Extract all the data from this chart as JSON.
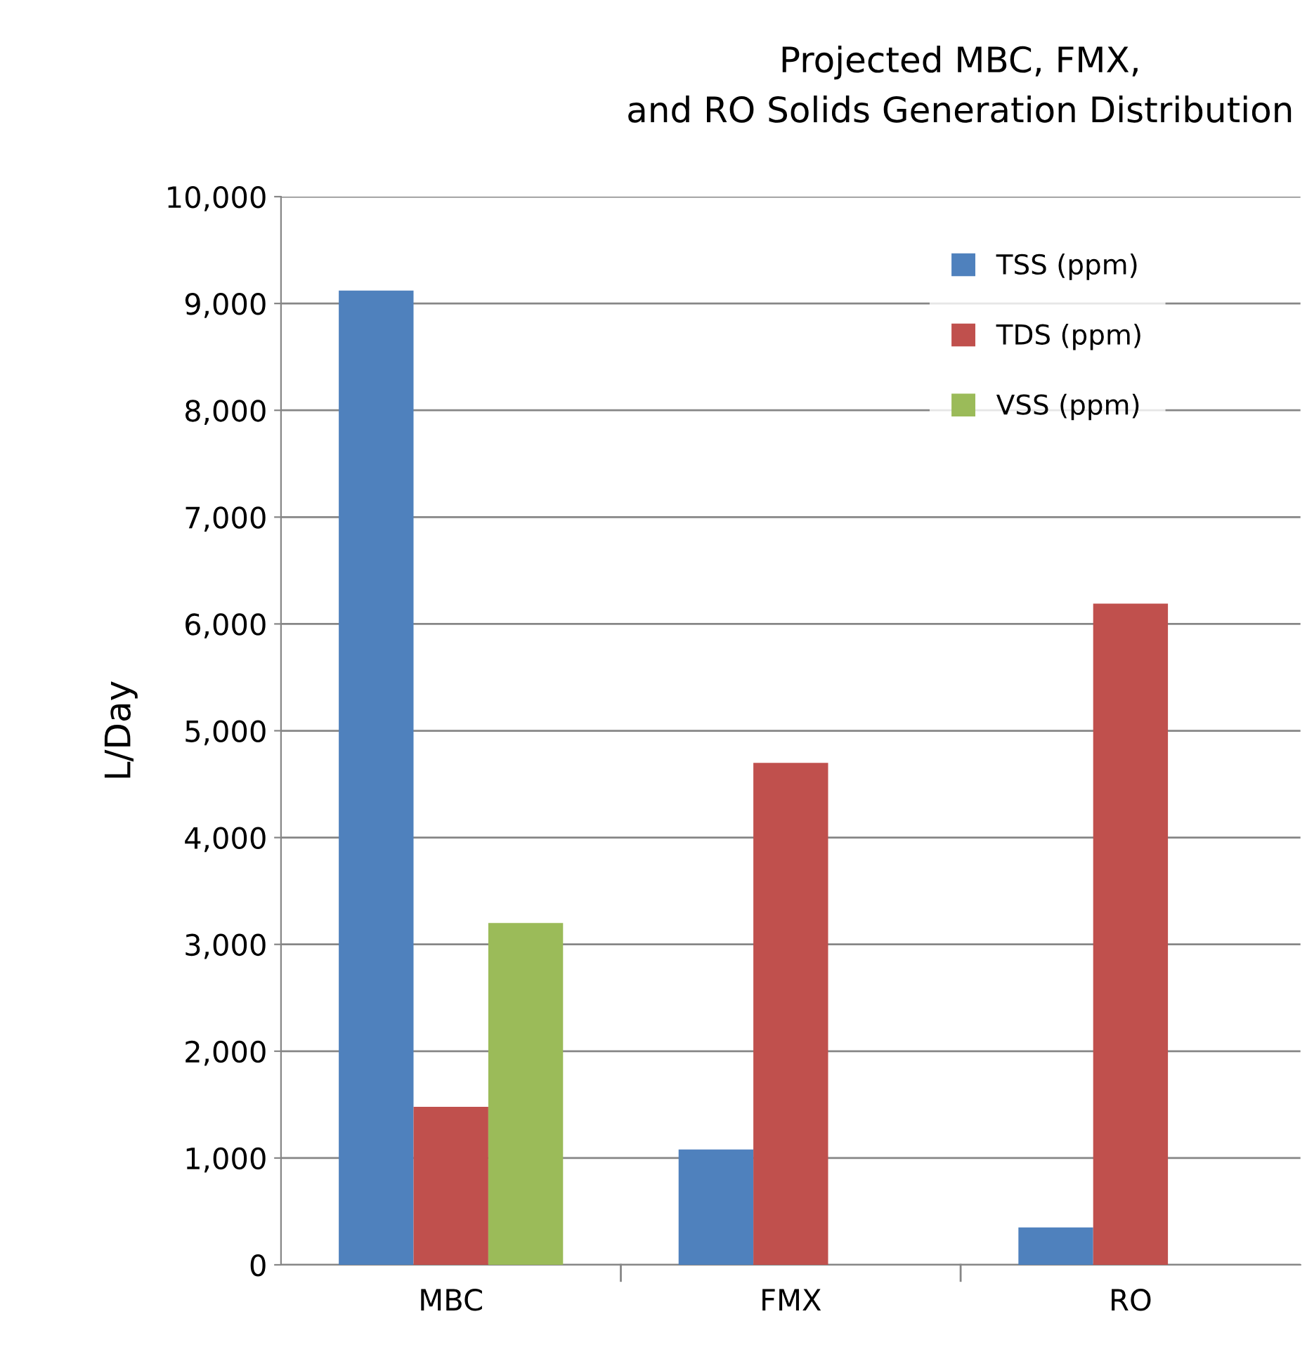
{
  "chart_data": {
    "type": "bar",
    "title": "Projected MBC, FMX,\nand RO Solids Generation Distribution",
    "ylabel": "L/Day",
    "categories": [
      "MBC",
      "FMX",
      "RO"
    ],
    "series": [
      {
        "name": "TSS (ppm)",
        "color": "#4f81bd",
        "values": [
          9120,
          1080,
          350
        ]
      },
      {
        "name": "TDS (ppm)",
        "color": "#c0504d",
        "values": [
          1480,
          4700,
          6190
        ]
      },
      {
        "name": "VSS (ppm)",
        "color": "#9bbb59",
        "values": [
          3200,
          null,
          null
        ]
      }
    ],
    "ylim": [
      0,
      10000
    ],
    "yticks": [
      {
        "value": 0,
        "label": "0"
      },
      {
        "value": 1000,
        "label": "1,000"
      },
      {
        "value": 2000,
        "label": "2,000"
      },
      {
        "value": 3000,
        "label": "3,000"
      },
      {
        "value": 4000,
        "label": "4,000"
      },
      {
        "value": 5000,
        "label": "5,000"
      },
      {
        "value": 6000,
        "label": "6,000"
      },
      {
        "value": 7000,
        "label": "7,000"
      },
      {
        "value": 8000,
        "label": "8,000"
      },
      {
        "value": 9000,
        "label": "9,000"
      },
      {
        "value": 10000,
        "label": "10,000"
      }
    ],
    "grid": "y",
    "legend": "top right"
  }
}
